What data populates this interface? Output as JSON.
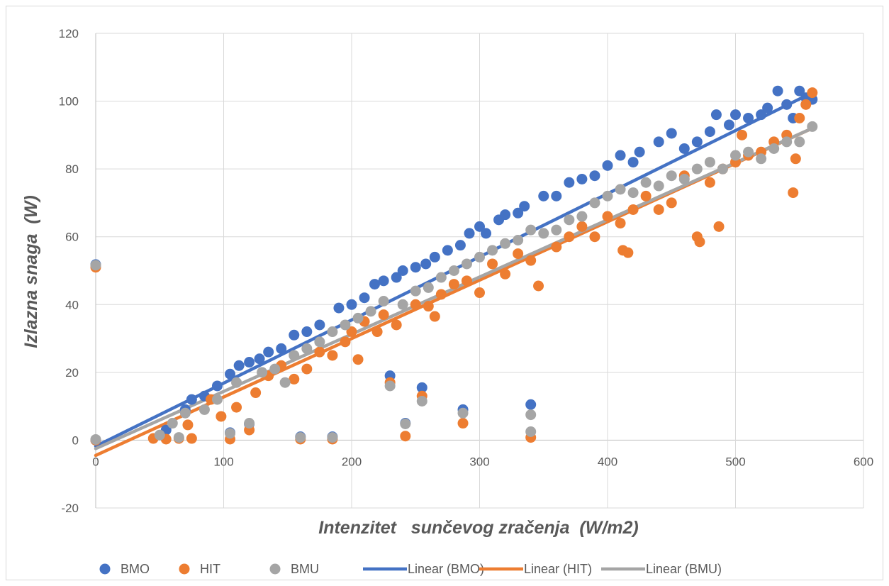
{
  "chart_data": {
    "type": "scatter",
    "title": "",
    "xlabel": "Intenzitet   sunčevog zračenja  (W/m2)",
    "ylabel": "Izlazna snaga  (W)",
    "xlim": [
      0,
      600
    ],
    "ylim": [
      -20,
      120
    ],
    "x_ticks": [
      0,
      100,
      200,
      300,
      400,
      500,
      600
    ],
    "y_ticks": [
      -20,
      0,
      20,
      40,
      60,
      80,
      100,
      120
    ],
    "grid": true,
    "legend_position": "bottom",
    "series": [
      {
        "name": "BMO",
        "kind": "scatter",
        "color": "#4472C4",
        "points": [
          [
            0,
            51.8
          ],
          [
            0,
            0
          ],
          [
            55,
            3
          ],
          [
            70,
            9
          ],
          [
            75,
            12
          ],
          [
            85,
            13
          ],
          [
            95,
            16
          ],
          [
            105,
            19.5
          ],
          [
            112,
            22
          ],
          [
            120,
            23
          ],
          [
            128,
            24
          ],
          [
            135,
            26
          ],
          [
            145,
            27
          ],
          [
            155,
            31
          ],
          [
            165,
            32
          ],
          [
            175,
            34
          ],
          [
            190,
            39
          ],
          [
            200,
            40
          ],
          [
            210,
            42
          ],
          [
            218,
            46
          ],
          [
            225,
            47
          ],
          [
            235,
            48
          ],
          [
            240,
            50
          ],
          [
            250,
            51
          ],
          [
            258,
            52
          ],
          [
            265,
            54
          ],
          [
            275,
            56
          ],
          [
            285,
            57.5
          ],
          [
            292,
            61
          ],
          [
            300,
            63
          ],
          [
            305,
            61
          ],
          [
            315,
            65
          ],
          [
            320,
            66.5
          ],
          [
            330,
            67
          ],
          [
            335,
            69
          ],
          [
            350,
            72
          ],
          [
            360,
            72
          ],
          [
            370,
            76
          ],
          [
            380,
            77
          ],
          [
            390,
            78
          ],
          [
            400,
            81
          ],
          [
            410,
            84
          ],
          [
            420,
            82
          ],
          [
            425,
            85
          ],
          [
            440,
            88
          ],
          [
            450,
            90.5
          ],
          [
            460,
            86
          ],
          [
            470,
            88
          ],
          [
            480,
            91
          ],
          [
            485,
            96
          ],
          [
            495,
            93
          ],
          [
            500,
            96
          ],
          [
            510,
            95
          ],
          [
            520,
            96
          ],
          [
            525,
            98
          ],
          [
            533,
            103
          ],
          [
            540,
            99
          ],
          [
            545,
            95
          ],
          [
            550,
            103
          ],
          [
            555,
            101
          ],
          [
            560,
            100.5
          ],
          [
            230,
            19
          ],
          [
            255,
            15.5
          ],
          [
            287,
            9
          ],
          [
            242,
            5
          ],
          [
            340,
            10.5
          ],
          [
            105,
            2.2
          ],
          [
            120,
            4.8
          ],
          [
            160,
            1
          ],
          [
            185,
            1
          ]
        ]
      },
      {
        "name": "HIT",
        "kind": "scatter",
        "color": "#ED7D31",
        "points": [
          [
            0,
            51
          ],
          [
            0,
            0
          ],
          [
            45,
            0.5
          ],
          [
            55,
            0.3
          ],
          [
            65,
            0.5
          ],
          [
            72,
            4.5
          ],
          [
            75,
            0.5
          ],
          [
            90,
            12
          ],
          [
            98,
            7
          ],
          [
            105,
            0.3
          ],
          [
            110,
            9.7
          ],
          [
            120,
            3
          ],
          [
            125,
            14
          ],
          [
            135,
            19
          ],
          [
            145,
            22
          ],
          [
            155,
            18
          ],
          [
            160,
            0.3
          ],
          [
            165,
            21
          ],
          [
            175,
            26
          ],
          [
            185,
            25
          ],
          [
            185,
            0.3
          ],
          [
            195,
            29
          ],
          [
            200,
            32
          ],
          [
            205,
            23.8
          ],
          [
            210,
            35
          ],
          [
            220,
            32
          ],
          [
            225,
            37
          ],
          [
            230,
            17
          ],
          [
            235,
            34
          ],
          [
            242,
            1.2
          ],
          [
            250,
            40
          ],
          [
            255,
            13
          ],
          [
            260,
            39.5
          ],
          [
            265,
            36.5
          ],
          [
            270,
            43
          ],
          [
            280,
            46
          ],
          [
            287,
            5
          ],
          [
            290,
            47
          ],
          [
            300,
            43.5
          ],
          [
            310,
            52
          ],
          [
            320,
            49
          ],
          [
            330,
            55
          ],
          [
            340,
            53
          ],
          [
            340,
            0.8
          ],
          [
            346,
            45.5
          ],
          [
            360,
            57
          ],
          [
            370,
            60
          ],
          [
            380,
            63
          ],
          [
            390,
            60
          ],
          [
            400,
            66
          ],
          [
            410,
            64
          ],
          [
            412,
            56
          ],
          [
            416,
            55.3
          ],
          [
            420,
            68
          ],
          [
            430,
            72
          ],
          [
            440,
            68
          ],
          [
            450,
            70
          ],
          [
            460,
            78
          ],
          [
            470,
            60
          ],
          [
            472,
            58.5
          ],
          [
            480,
            76
          ],
          [
            487,
            63
          ],
          [
            490,
            80
          ],
          [
            500,
            82
          ],
          [
            505,
            90
          ],
          [
            510,
            84
          ],
          [
            520,
            85
          ],
          [
            530,
            88
          ],
          [
            540,
            90
          ],
          [
            545,
            73
          ],
          [
            547,
            83
          ],
          [
            550,
            95
          ],
          [
            555,
            99
          ],
          [
            560,
            102.5
          ]
        ]
      },
      {
        "name": "BMU",
        "kind": "scatter",
        "color": "#A5A5A5",
        "points": [
          [
            0,
            51.6
          ],
          [
            0,
            0.2
          ],
          [
            50,
            1.5
          ],
          [
            60,
            5
          ],
          [
            65,
            0.8
          ],
          [
            70,
            8
          ],
          [
            85,
            9
          ],
          [
            95,
            12
          ],
          [
            105,
            2
          ],
          [
            110,
            17
          ],
          [
            120,
            5
          ],
          [
            130,
            20
          ],
          [
            140,
            21
          ],
          [
            148,
            17
          ],
          [
            155,
            25
          ],
          [
            160,
            0.8
          ],
          [
            165,
            27
          ],
          [
            175,
            29
          ],
          [
            185,
            32
          ],
          [
            185,
            0.8
          ],
          [
            195,
            34
          ],
          [
            205,
            36
          ],
          [
            215,
            38
          ],
          [
            225,
            41
          ],
          [
            230,
            16
          ],
          [
            240,
            40
          ],
          [
            242,
            4.8
          ],
          [
            250,
            44
          ],
          [
            255,
            11.5
          ],
          [
            260,
            45
          ],
          [
            270,
            48
          ],
          [
            280,
            50
          ],
          [
            287,
            8
          ],
          [
            290,
            52
          ],
          [
            300,
            54
          ],
          [
            310,
            56
          ],
          [
            320,
            58
          ],
          [
            330,
            59
          ],
          [
            340,
            62
          ],
          [
            340,
            2.5
          ],
          [
            340,
            7.5
          ],
          [
            350,
            61
          ],
          [
            360,
            62
          ],
          [
            370,
            65
          ],
          [
            380,
            66
          ],
          [
            390,
            70
          ],
          [
            400,
            72
          ],
          [
            410,
            74
          ],
          [
            420,
            73
          ],
          [
            430,
            76
          ],
          [
            440,
            75
          ],
          [
            450,
            78
          ],
          [
            460,
            77
          ],
          [
            470,
            80
          ],
          [
            480,
            82
          ],
          [
            490,
            80
          ],
          [
            500,
            84
          ],
          [
            510,
            85
          ],
          [
            520,
            83
          ],
          [
            530,
            86
          ],
          [
            540,
            88
          ],
          [
            550,
            88
          ],
          [
            560,
            92.5
          ]
        ]
      },
      {
        "name": "Linear (BMO)",
        "kind": "line",
        "color": "#4472C4",
        "from": [
          0,
          -1.8
        ],
        "to": [
          560,
          102.5
        ]
      },
      {
        "name": "Linear (HIT)",
        "kind": "line",
        "color": "#ED7D31",
        "from": [
          0,
          -4.5
        ],
        "to": [
          560,
          92
        ]
      },
      {
        "name": "Linear (BMU)",
        "kind": "line",
        "color": "#A5A5A5",
        "from": [
          0,
          -2.5
        ],
        "to": [
          560,
          92
        ]
      }
    ]
  }
}
